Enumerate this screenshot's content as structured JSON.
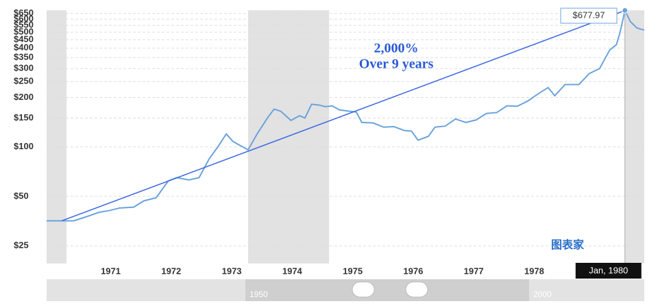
{
  "chart_data": {
    "type": "line",
    "log_scale": true,
    "grid": true,
    "x": [
      1970.44,
      1970.89,
      1971.09,
      1971.31,
      1971.48,
      1971.65,
      1971.88,
      1972.05,
      1972.25,
      1972.45,
      1972.59,
      1972.79,
      1972.96,
      1973.13,
      1973.27,
      1973.41,
      1973.52,
      1973.77,
      1973.92,
      1974.09,
      1974.2,
      1974.31,
      1974.48,
      1974.62,
      1974.71,
      1974.82,
      1974.94,
      1975.05,
      1975.16,
      1975.28,
      1975.45,
      1975.56,
      1975.65,
      1975.84,
      1976.01,
      1976.18,
      1976.35,
      1976.47,
      1976.58,
      1976.75,
      1976.86,
      1977.03,
      1977.2,
      1977.37,
      1977.54,
      1977.71,
      1977.88,
      1978.05,
      1978.22,
      1978.39,
      1978.56,
      1978.73,
      1978.84,
      1979.01,
      1979.24,
      1979.41,
      1979.58,
      1979.75,
      1979.86,
      1979.92,
      1980.0,
      1980.09,
      1980.2,
      1980.32
    ],
    "series": [
      {
        "color": "#6aa3dc",
        "values": [
          35.5,
          35.5,
          37.5,
          40,
          41,
          42.5,
          43,
          47,
          49,
          62,
          65,
          63,
          65,
          85,
          100,
          120,
          108,
          96,
          120,
          150,
          170,
          165,
          145,
          155,
          150,
          182,
          180,
          176,
          178,
          168,
          165,
          163,
          141,
          140,
          132,
          133,
          126,
          125,
          110,
          116,
          132,
          134,
          148,
          141,
          146,
          160,
          162,
          178,
          177,
          190,
          210,
          230,
          205,
          240,
          240,
          280,
          300,
          390,
          420,
          500,
          677.97,
          580,
          530,
          515
        ]
      }
    ],
    "xlim": [
      1970.44,
      1980.32
    ],
    "xticks": [
      1971,
      1972,
      1973,
      1974,
      1975,
      1976,
      1977,
      1978
    ],
    "ylim": [
      19.5,
      680
    ],
    "yticks": [
      {
        "value": 25,
        "label": "$25"
      },
      {
        "value": 50,
        "label": "$50"
      },
      {
        "value": 100,
        "label": "$100"
      },
      {
        "value": 150,
        "label": "$150"
      },
      {
        "value": 200,
        "label": "$200"
      },
      {
        "value": 250,
        "label": "$250"
      },
      {
        "value": 300,
        "label": "$300"
      },
      {
        "value": 350,
        "label": "$350"
      },
      {
        "value": 400,
        "label": "$400"
      },
      {
        "value": 450,
        "label": "$450"
      },
      {
        "value": 500,
        "label": "$500"
      },
      {
        "value": 550,
        "label": "$550"
      },
      {
        "value": 600,
        "label": "$600"
      },
      {
        "value": 650,
        "label": "$650"
      }
    ],
    "shaded_ranges": [
      [
        1970.44,
        1970.77
      ],
      [
        1973.77,
        1975.11
      ],
      [
        1980.0,
        1980.32
      ]
    ],
    "trend_line": {
      "color": "#3a67e0",
      "x": [
        1970.69,
        1980.0
      ],
      "values": [
        35.5,
        677.97
      ]
    },
    "annotation": [
      "2,000%",
      "Over 9 years"
    ],
    "tooltip_value": "$677.97",
    "tooltip_date": "Jan, 1980",
    "navigator_labels": [
      "1950",
      "2000"
    ],
    "watermark": "图表家"
  }
}
